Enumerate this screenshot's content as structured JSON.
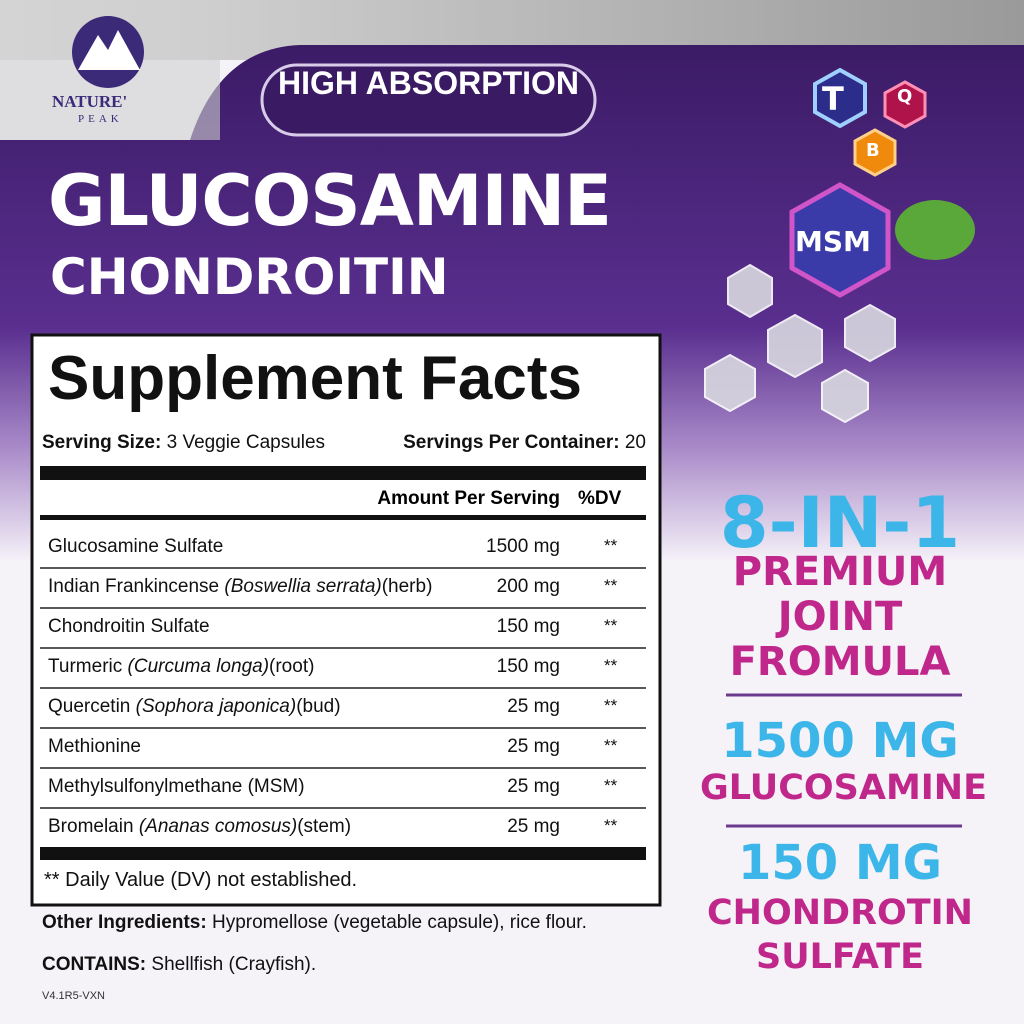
{
  "brand": {
    "name": "NATURE'",
    "sub": "PEAK"
  },
  "badge": "HIGH ABSORPTION",
  "title": [
    "GLUCOSAMINE",
    "CHONDROITIN"
  ],
  "hexagons": [
    "T",
    "Q",
    "B",
    "MSM"
  ],
  "facts": {
    "heading": "Supplement Facts",
    "serving_size": {
      "label": "Serving Size:",
      "value": "3 Veggie Capsules"
    },
    "servings": {
      "label": "Servings Per Container:",
      "value": "20"
    },
    "columns": [
      "Amount Per Serving",
      "%DV"
    ],
    "rows": [
      {
        "name": "Glucosamine Sulfate",
        "amount": "1500 mg",
        "dv": "**"
      },
      {
        "name": "Indian Frankincense",
        "latin": "(Boswellia serrata)",
        "part": "(herb)",
        "amount": "200 mg",
        "dv": "**"
      },
      {
        "name": "Chondroitin Sulfate",
        "amount": "150 mg",
        "dv": "**"
      },
      {
        "name": "Turmeric",
        "latin": "(Curcuma longa)",
        "part": "(root)",
        "amount": "150 mg",
        "dv": "**"
      },
      {
        "name": "Quercetin",
        "latin": "(Sophora japonica)",
        "part": "(bud)",
        "amount": "25 mg",
        "dv": "**"
      },
      {
        "name": "Methionine",
        "amount": "25 mg",
        "dv": "**"
      },
      {
        "name": "Methylsulfonylmethane (MSM)",
        "amount": "25 mg",
        "dv": "**"
      },
      {
        "name": "Bromelain",
        "latin": "(Ananas comosus)",
        "part": "(stem)",
        "amount": "25 mg",
        "dv": "**"
      }
    ],
    "footnote": "** Daily Value (DV) not established."
  },
  "other_ingredients": {
    "label": "Other Ingredients:",
    "value": "Hypromellose (vegetable capsule), rice flour."
  },
  "contains": {
    "label": "CONTAINS:",
    "value": "Shellfish (Crayfish)."
  },
  "version": "V4.1R5-VXN",
  "claims": {
    "headline": "8-IN-1",
    "formula": [
      "PREMIUM",
      "JOINT",
      "FROMULA"
    ],
    "glucosamine": {
      "amount": "1500 MG",
      "name": "GLUCOSAMINE"
    },
    "chondroitin": {
      "amount": "150 MG",
      "name": [
        "CHONDROTIN",
        "SULFATE"
      ]
    }
  }
}
